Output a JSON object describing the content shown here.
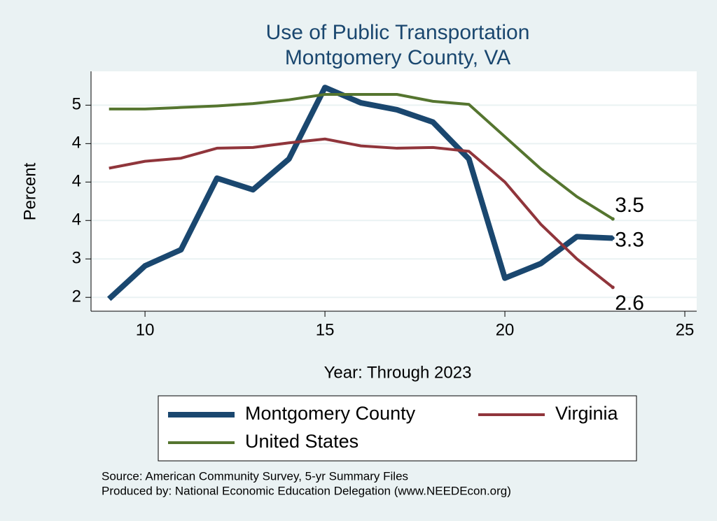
{
  "chart_data": {
    "type": "line",
    "title": [
      "Use of Public Transportation",
      "Montgomery County, VA"
    ],
    "x_label": "Year: Through 2023",
    "y_label": "Percent",
    "x": [
      9,
      10,
      11,
      12,
      13,
      14,
      15,
      16,
      17,
      18,
      19,
      20,
      21,
      22,
      23
    ],
    "series": [
      {
        "name": "Montgomery County",
        "color": "#1a476f",
        "width": 8,
        "values": [
          2.48,
          2.91,
          3.12,
          4.05,
          3.9,
          4.3,
          5.23,
          5.03,
          4.94,
          4.78,
          4.3,
          2.75,
          2.94,
          3.29,
          3.27
        ],
        "value_labels": [
          null,
          null,
          null,
          null,
          null,
          null,
          null,
          null,
          null,
          null,
          null,
          null,
          null,
          null,
          "3.3"
        ]
      },
      {
        "name": "Virginia",
        "color": "#90353b",
        "width": 4,
        "values": [
          4.18,
          4.27,
          4.31,
          4.44,
          4.45,
          4.51,
          4.56,
          4.47,
          4.44,
          4.45,
          4.4,
          4.0,
          3.45,
          3.0,
          2.63
        ],
        "value_labels": [
          null,
          null,
          null,
          null,
          null,
          null,
          null,
          null,
          null,
          null,
          null,
          null,
          null,
          null,
          "2.6"
        ]
      },
      {
        "name": "United States",
        "color": "#55752f",
        "width": 4,
        "values": [
          4.95,
          4.95,
          4.97,
          4.99,
          5.02,
          5.07,
          5.14,
          5.14,
          5.14,
          5.05,
          5.01,
          4.59,
          4.17,
          3.81,
          3.52
        ],
        "value_labels": [
          null,
          null,
          null,
          null,
          null,
          null,
          null,
          null,
          null,
          null,
          null,
          null,
          null,
          null,
          "3.5"
        ]
      }
    ],
    "xlim": [
      8.5,
      25.33
    ],
    "xticks": [
      10,
      15,
      20,
      25
    ],
    "ylim": [
      2.32,
      5.44
    ],
    "yticks": [
      {
        "value": 2.5,
        "label": "2"
      },
      {
        "value": 3,
        "label": "3"
      },
      {
        "value": 3.5,
        "label": "4"
      },
      {
        "value": 4,
        "label": "4"
      },
      {
        "value": 4.5,
        "label": "4"
      },
      {
        "value": 5,
        "label": "5"
      }
    ],
    "grid": true,
    "notes": [
      "Source: American Community Survey, 5-yr Summary Files",
      "Produced by: National Economic Education Delegation (www.NEEDEcon.org)"
    ]
  }
}
